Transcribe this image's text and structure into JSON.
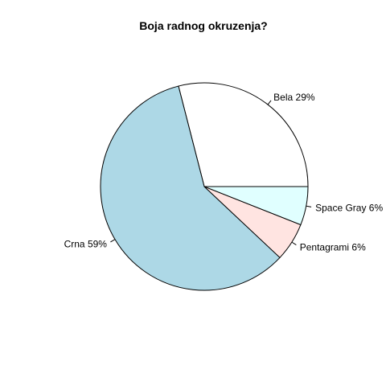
{
  "chart_data": {
    "type": "pie",
    "title": "Boja radnog okruzenja?",
    "start_angle_deg": 0,
    "direction": "counterclockwise",
    "slices": [
      {
        "label": "Bela 29%",
        "value": 29,
        "color": "#ffffff"
      },
      {
        "label": "Crna 59%",
        "value": 59,
        "color": "#add8e6"
      },
      {
        "label": "Pentagrami 6%",
        "value": 6,
        "color": "#ffe4e1"
      },
      {
        "label": "Space Gray 6%",
        "value": 6,
        "color": "#e0ffff"
      }
    ]
  }
}
